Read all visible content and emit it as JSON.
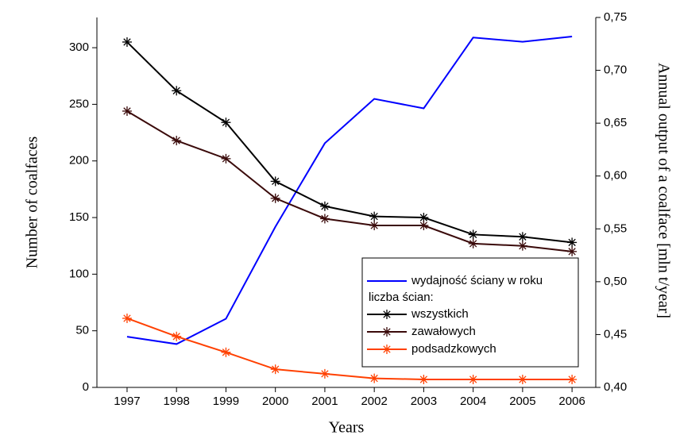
{
  "chart_data": {
    "type": "line",
    "x_label": "Years",
    "y_label": "Number of coalfaces",
    "y2_label": "Annual output of a coalface  [mln t/year]",
    "legend_title": "liczba ścian:",
    "x": [
      1997,
      1998,
      1999,
      2000,
      2001,
      2002,
      2003,
      2004,
      2005,
      2006
    ],
    "xlim": [
      1996.39,
      2006.48
    ],
    "xticks": [
      1997,
      1998,
      1999,
      2000,
      2001,
      2002,
      2003,
      2004,
      2005,
      2006
    ],
    "ylim": [
      0,
      326.7
    ],
    "yticks": [
      0,
      50,
      100,
      150,
      200,
      250,
      300
    ],
    "y2lim": [
      0.4,
      0.75
    ],
    "y2ticks": [
      {
        "value": 0.4,
        "label": "0,40"
      },
      {
        "value": 0.45,
        "label": "0,45"
      },
      {
        "value": 0.5,
        "label": "0,50"
      },
      {
        "value": 0.55,
        "label": "0,55"
      },
      {
        "value": 0.6,
        "label": "0,60"
      },
      {
        "value": 0.65,
        "label": "0,65"
      },
      {
        "value": 0.7,
        "label": "0,70"
      },
      {
        "value": 0.75,
        "label": "0,75"
      }
    ],
    "series": [
      {
        "name": "wydajność ściany w roku",
        "color": "#0000ff",
        "axis": "y2",
        "marker": "none",
        "values": [
          0.448,
          0.441,
          0.465,
          0.552,
          0.631,
          0.673,
          0.664,
          0.731,
          0.727,
          0.732
        ]
      },
      {
        "name": "wszystkich",
        "color": "#000000",
        "marker": "asterisk",
        "values": [
          305,
          262,
          234,
          182,
          160,
          151,
          150,
          135,
          133,
          128
        ]
      },
      {
        "name": "zawałowych",
        "color": "#3a0a0a",
        "marker": "asterisk",
        "values": [
          244,
          218,
          202,
          167,
          149,
          143,
          143,
          127,
          125,
          120
        ]
      },
      {
        "name": "podsadzkowych",
        "color": "#ff4000",
        "marker": "asterisk",
        "values": [
          61,
          45,
          31,
          16,
          12,
          8,
          7,
          7,
          7,
          7
        ]
      }
    ]
  }
}
